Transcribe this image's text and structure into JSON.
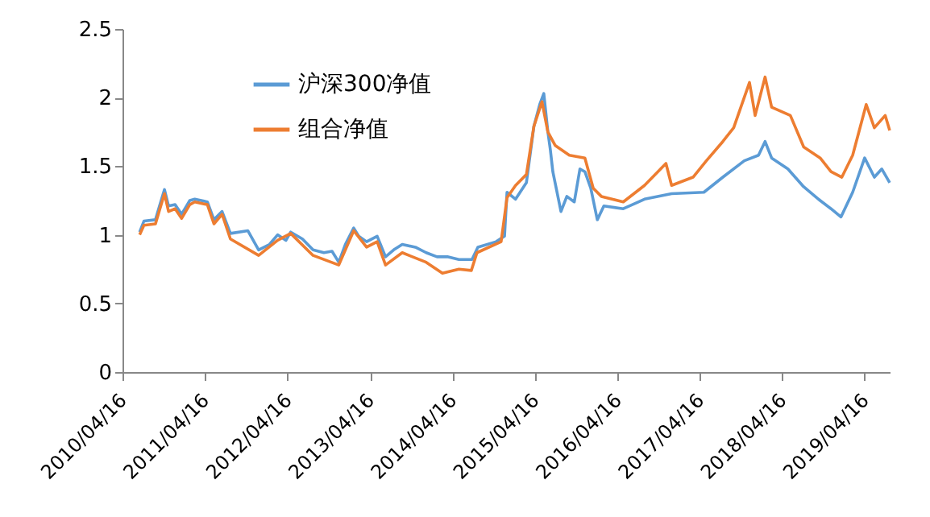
{
  "chart_data": {
    "type": "line",
    "xlim": [
      "2010-04-16",
      "2019-08-05"
    ],
    "xticks": [
      {
        "value": "2010-04-16",
        "label": "2010/04/16"
      },
      {
        "value": "2011-04-16",
        "label": "2011/04/16"
      },
      {
        "value": "2012-04-16",
        "label": "2012/04/16"
      },
      {
        "value": "2013-04-16",
        "label": "2013/04/16"
      },
      {
        "value": "2014-04-16",
        "label": "2014/04/16"
      },
      {
        "value": "2015-04-16",
        "label": "2015/04/16"
      },
      {
        "value": "2016-04-16",
        "label": "2016/04/16"
      },
      {
        "value": "2017-04-16",
        "label": "2017/04/16"
      },
      {
        "value": "2018-04-16",
        "label": "2018/04/16"
      },
      {
        "value": "2019-04-16",
        "label": "2019/04/16"
      }
    ],
    "ylim": [
      0,
      2.5
    ],
    "yticks": [
      0,
      0.5,
      1,
      1.5,
      2,
      2.5
    ],
    "grid": false,
    "legend": "top left",
    "marker": "none",
    "line_style": "solid",
    "series": [
      {
        "name": "沪深300净值",
        "color": "#5b9bd5",
        "x": [
          "2010-07-01",
          "2010-07-20",
          "2010-09-09",
          "2010-09-27",
          "2010-10-19",
          "2010-11-06",
          "2010-12-05",
          "2011-01-03",
          "2011-02-08",
          "2011-03-02",
          "2011-04-27",
          "2011-05-26",
          "2011-07-01",
          "2011-08-07",
          "2011-10-23",
          "2011-12-10",
          "2012-01-27",
          "2012-03-03",
          "2012-04-09",
          "2012-04-30",
          "2012-06-21",
          "2012-08-07",
          "2012-09-24",
          "2012-10-30",
          "2012-11-29",
          "2012-12-28",
          "2013-02-03",
          "2013-02-25",
          "2013-04-01",
          "2013-05-18",
          "2013-06-24",
          "2013-07-30",
          "2013-09-06",
          "2013-11-03",
          "2013-12-21",
          "2014-02-07",
          "2014-03-25",
          "2014-05-15",
          "2014-07-12",
          "2014-08-07",
          "2014-10-27",
          "2014-12-03",
          "2014-12-14",
          "2015-01-21",
          "2015-03-10",
          "2015-04-12",
          "2015-05-08",
          "2015-05-26",
          "2015-06-13",
          "2015-06-24",
          "2015-07-05",
          "2015-08-10",
          "2015-09-05",
          "2015-10-08",
          "2015-11-02",
          "2015-11-24",
          "2015-12-20",
          "2016-01-18",
          "2016-02-16",
          "2016-05-12",
          "2016-08-14",
          "2016-12-12",
          "2017-05-04",
          "2017-07-27",
          "2017-10-30",
          "2018-01-01",
          "2018-01-30",
          "2018-02-28",
          "2018-05-11",
          "2018-07-20",
          "2018-10-01",
          "2018-11-18",
          "2019-01-01",
          "2019-02-22",
          "2019-04-16",
          "2019-05-29",
          "2019-07-01",
          "2019-08-05"
        ],
        "values": [
          1.02,
          1.1,
          1.11,
          1.21,
          1.33,
          1.21,
          1.22,
          1.15,
          1.25,
          1.26,
          1.24,
          1.11,
          1.17,
          1.01,
          1.03,
          0.89,
          0.93,
          1.0,
          0.96,
          1.02,
          0.97,
          0.89,
          0.87,
          0.88,
          0.8,
          0.93,
          1.05,
          0.99,
          0.95,
          0.99,
          0.84,
          0.89,
          0.93,
          0.91,
          0.87,
          0.84,
          0.84,
          0.82,
          0.82,
          0.91,
          0.95,
          0.99,
          1.31,
          1.26,
          1.38,
          1.79,
          1.95,
          2.03,
          1.75,
          1.62,
          1.46,
          1.17,
          1.28,
          1.24,
          1.48,
          1.46,
          1.34,
          1.11,
          1.21,
          1.19,
          1.26,
          1.3,
          1.31,
          1.42,
          1.54,
          1.58,
          1.68,
          1.56,
          1.48,
          1.35,
          1.25,
          1.19,
          1.13,
          1.31,
          1.56,
          1.42,
          1.48,
          1.38
        ]
      },
      {
        "name": "组合净值",
        "color": "#ed7d31",
        "x": [
          "2010-07-01",
          "2010-07-20",
          "2010-09-09",
          "2010-09-27",
          "2010-10-19",
          "2010-11-06",
          "2010-12-05",
          "2011-01-03",
          "2011-02-08",
          "2011-03-02",
          "2011-04-27",
          "2011-05-26",
          "2011-07-01",
          "2011-08-07",
          "2011-12-10",
          "2012-03-03",
          "2012-04-30",
          "2012-08-07",
          "2012-11-29",
          "2013-02-03",
          "2013-04-01",
          "2013-05-18",
          "2013-06-24",
          "2013-09-06",
          "2013-12-21",
          "2014-03-03",
          "2014-05-15",
          "2014-07-09",
          "2014-08-03",
          "2014-11-18",
          "2014-12-14",
          "2015-01-21",
          "2015-03-10",
          "2015-04-12",
          "2015-05-18",
          "2015-06-13",
          "2015-07-16",
          "2015-09-16",
          "2015-11-24",
          "2015-12-31",
          "2016-02-05",
          "2016-05-12",
          "2016-08-14",
          "2016-11-17",
          "2016-12-12",
          "2017-03-17",
          "2017-05-15",
          "2017-07-27",
          "2017-09-13",
          "2017-11-22",
          "2017-12-17",
          "2018-01-30",
          "2018-02-28",
          "2018-05-22",
          "2018-07-20",
          "2018-10-01",
          "2018-11-18",
          "2019-01-05",
          "2019-02-22",
          "2019-04-23",
          "2019-05-29",
          "2019-07-16",
          "2019-08-05"
        ],
        "values": [
          1.0,
          1.07,
          1.08,
          1.18,
          1.3,
          1.17,
          1.19,
          1.12,
          1.22,
          1.24,
          1.22,
          1.08,
          1.15,
          0.97,
          0.85,
          0.96,
          1.01,
          0.85,
          0.78,
          1.03,
          0.91,
          0.95,
          0.78,
          0.87,
          0.8,
          0.72,
          0.75,
          0.74,
          0.87,
          0.95,
          1.27,
          1.36,
          1.44,
          1.79,
          1.97,
          1.75,
          1.65,
          1.58,
          1.56,
          1.34,
          1.28,
          1.24,
          1.36,
          1.52,
          1.36,
          1.42,
          1.54,
          1.68,
          1.78,
          2.11,
          1.87,
          2.15,
          1.93,
          1.87,
          1.64,
          1.56,
          1.46,
          1.42,
          1.58,
          1.95,
          1.78,
          1.87,
          1.76
        ]
      }
    ]
  }
}
